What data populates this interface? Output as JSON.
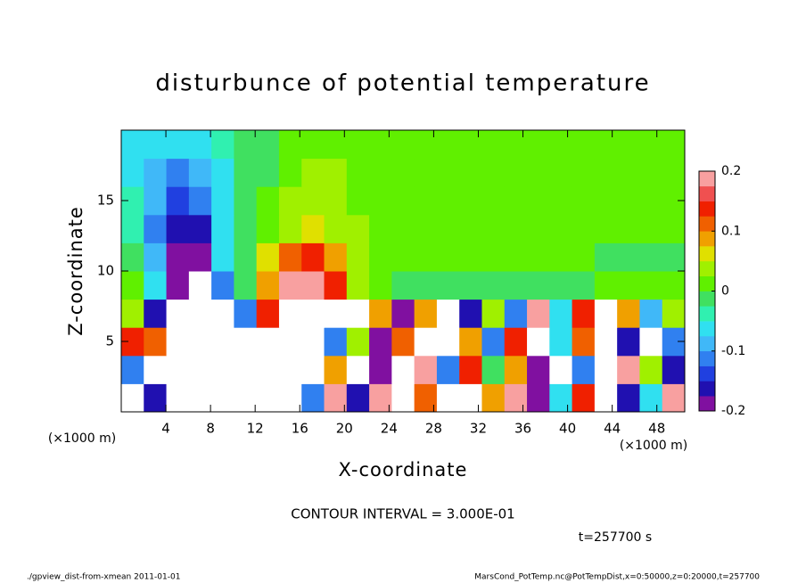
{
  "chart_data": {
    "type": "heatmap",
    "title": "disturbunce of potential temperature",
    "xlabel": "X-coordinate",
    "ylabel": "Z-coordinate",
    "x_unit_label": "(×1000 m)",
    "contour_note": "CONTOUR INTERVAL = 3.000E-01",
    "time_label": "t=257700 s",
    "footer_left": "./gpview_dist-from-xmean  2011-01-01",
    "footer_right": "MarsCond_PotTemp.nc@PotTempDist,x=0:50000,z=0:20000,t=257700",
    "xlim": [
      0,
      50.5
    ],
    "ylim": [
      0,
      20
    ],
    "xticks": [
      4,
      8,
      12,
      16,
      20,
      24,
      28,
      32,
      36,
      40,
      44,
      48
    ],
    "yticks": [
      5,
      10,
      15
    ],
    "levels": [
      -0.2,
      -0.175,
      -0.15,
      -0.125,
      -0.1,
      -0.075,
      -0.05,
      -0.025,
      0,
      0.025,
      0.05,
      0.075,
      0.1,
      0.125,
      0.15,
      0.175,
      0.2
    ],
    "colors": [
      "#8010a0",
      "#2010b0",
      "#2040e0",
      "#3080f0",
      "#40b8f8",
      "#30e0f0",
      "#30f0b0",
      "#40e060",
      "#60f000",
      "#a0f000",
      "#e0e000",
      "#f0a000",
      "#f06000",
      "#f02000",
      "#f05050",
      "#f8a0a0"
    ],
    "out_of_range_color": "#ffffff",
    "colorbar_ticks": [
      -0.2,
      -0.1,
      0,
      0.1,
      0.2
    ],
    "z": [
      [
        0.3,
        -0.15,
        0.3,
        -0.3,
        -0.3,
        0.25,
        -0.3,
        0.3,
        -0.1,
        0.2,
        -0.15,
        0.2,
        -0.25,
        0.12,
        0.3,
        -0.25,
        0.1,
        0.2,
        -0.2,
        -0.05,
        0.15,
        0.3,
        -0.15,
        -0.05,
        0.2
      ],
      [
        -0.1,
        0.25,
        -0.3,
        0.3,
        -0.3,
        0.3,
        -0.25,
        0.3,
        -0.3,
        0.1,
        0.3,
        -0.2,
        -0.3,
        0.2,
        -0.1,
        0.15,
        0.0,
        0.1,
        -0.2,
        0.25,
        -0.1,
        -0.25,
        0.18,
        0.05,
        -0.15
      ],
      [
        0.15,
        0.12,
        -0.3,
        0.3,
        -0.25,
        -0.3,
        0.25,
        0.3,
        -0.3,
        -0.1,
        0.05,
        -0.2,
        0.12,
        -0.25,
        0.3,
        0.08,
        -0.12,
        0.15,
        -0.3,
        -0.05,
        0.12,
        0.25,
        -0.15,
        0.3,
        -0.1
      ],
      [
        0.05,
        -0.15,
        0.3,
        -0.3,
        0.25,
        -0.1,
        0.15,
        0.3,
        0.25,
        0.3,
        -0.25,
        0.1,
        -0.2,
        0.08,
        0.3,
        -0.15,
        0.05,
        -0.1,
        0.2,
        -0.05,
        0.15,
        -0.3,
        0.1,
        -0.08,
        0.05
      ],
      [
        0.02,
        -0.06,
        -0.18,
        -0.25,
        -0.12,
        0.0,
        0.1,
        0.18,
        0.19,
        0.14,
        0.05,
        0.01,
        0.0,
        0.0,
        -0.01,
        -0.01,
        0.0,
        0.0,
        0.0,
        0.0,
        0.0,
        0.01,
        0.01,
        0.02,
        0.02
      ],
      [
        -0.02,
        -0.08,
        -0.19,
        -0.18,
        -0.06,
        0.0,
        0.06,
        0.12,
        0.14,
        0.1,
        0.04,
        0.02,
        0.02,
        0.01,
        0.01,
        0.01,
        0.01,
        0.01,
        0.01,
        0.01,
        0.01,
        0.0,
        0.0,
        0.0,
        0.0
      ],
      [
        -0.03,
        -0.1,
        -0.16,
        -0.15,
        -0.07,
        -0.02,
        0.02,
        0.05,
        0.06,
        0.05,
        0.03,
        0.02,
        0.02,
        0.02,
        0.02,
        0.02,
        0.02,
        0.02,
        0.02,
        0.02,
        0.01,
        0.01,
        0.01,
        0.01,
        0.01
      ],
      [
        -0.04,
        -0.09,
        -0.13,
        -0.12,
        -0.06,
        -0.02,
        0.01,
        0.03,
        0.04,
        0.03,
        0.02,
        0.02,
        0.02,
        0.02,
        0.02,
        0.02,
        0.02,
        0.02,
        0.01,
        0.01,
        0.01,
        0.01,
        0.01,
        0.01,
        0.01
      ],
      [
        -0.05,
        -0.08,
        -0.1,
        -0.09,
        -0.05,
        -0.02,
        0.0,
        0.02,
        0.03,
        0.03,
        0.02,
        0.02,
        0.02,
        0.02,
        0.02,
        0.02,
        0.01,
        0.01,
        0.01,
        0.01,
        0.01,
        0.01,
        0.01,
        0.01,
        0.01
      ],
      [
        -0.06,
        -0.07,
        -0.07,
        -0.06,
        -0.04,
        -0.02,
        0.0,
        0.01,
        0.02,
        0.02,
        0.02,
        0.02,
        0.02,
        0.02,
        0.02,
        0.02,
        0.01,
        0.01,
        0.01,
        0.01,
        0.01,
        0.01,
        0.01,
        0.01,
        0.01
      ]
    ]
  }
}
